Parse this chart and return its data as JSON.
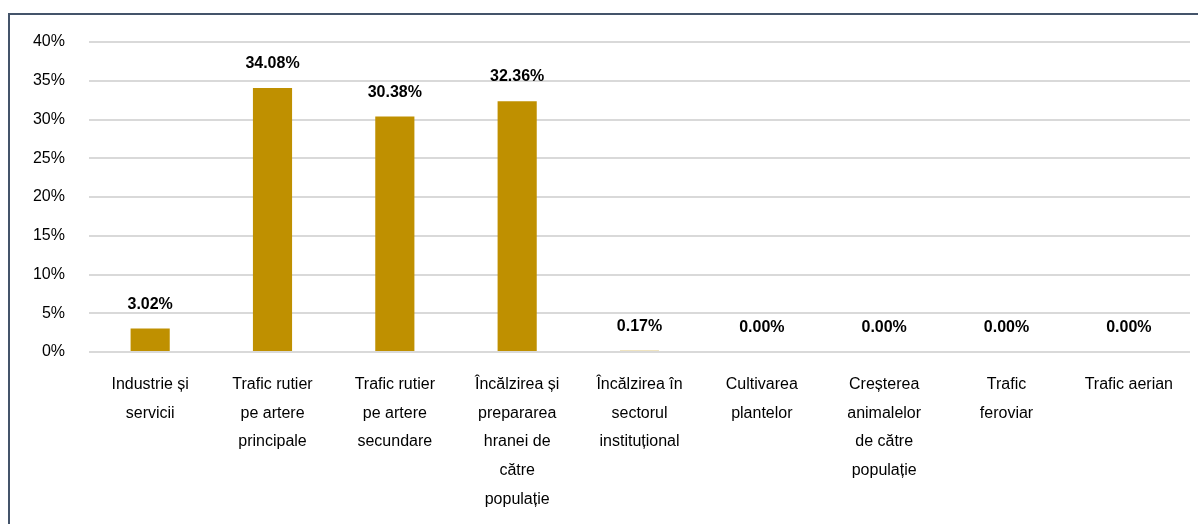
{
  "chart_data": {
    "type": "bar",
    "categories": [
      "Industrie și servicii",
      "Trafic rutier pe artere principale",
      "Trafic rutier pe artere secundare",
      "Încălzirea și prepararea hranei de către populație",
      "Încălzirea în sectorul instituțional",
      "Cultivarea plantelor",
      "Creșterea animalelor de către populație",
      "Trafic feroviar",
      "Trafic aerian"
    ],
    "values": [
      3.02,
      34.08,
      30.38,
      32.36,
      0.17,
      0,
      0,
      0,
      0
    ],
    "color": "#bf9000",
    "value_labels": [
      "3.02%",
      "34.08%",
      "30.38%",
      "32.36%",
      "0.17%",
      "0.00%",
      "0.00%",
      "0.00%",
      "0.00%"
    ],
    "ylim": [
      0,
      40
    ],
    "yticks": [
      {
        "value": 0,
        "label": "0%"
      },
      {
        "value": 5,
        "label": "5%"
      },
      {
        "value": 10,
        "label": "10%"
      },
      {
        "value": 15,
        "label": "15%"
      },
      {
        "value": 20,
        "label": "20%"
      },
      {
        "value": 25,
        "label": "25%"
      },
      {
        "value": 30,
        "label": "30%"
      },
      {
        "value": 35,
        "label": "35%"
      },
      {
        "value": 40,
        "label": "40%"
      }
    ],
    "grid": "y"
  }
}
